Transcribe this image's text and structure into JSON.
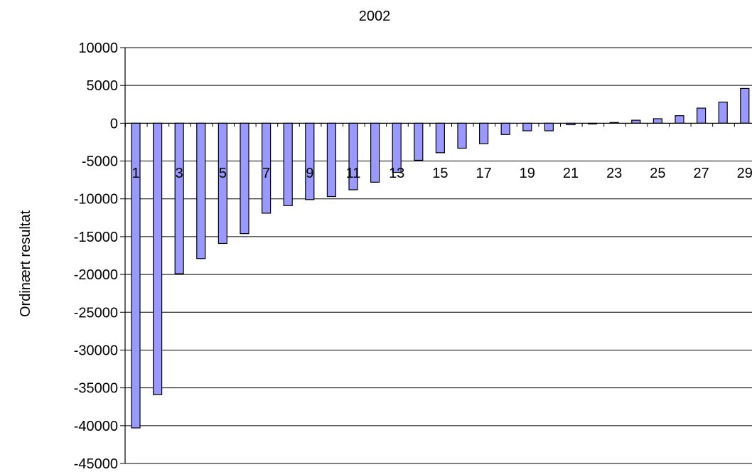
{
  "chart_data": {
    "type": "bar",
    "title": "2002",
    "xlabel": "",
    "ylabel": "Ordinært resultat",
    "ylim": [
      -45000,
      10000
    ],
    "y_ticks": [
      10000,
      5000,
      0,
      -5000,
      -10000,
      -15000,
      -20000,
      -25000,
      -30000,
      -35000,
      -40000,
      -45000
    ],
    "x_tick_labels": [
      "1",
      "3",
      "5",
      "7",
      "9",
      "11",
      "13",
      "15",
      "17",
      "19",
      "21",
      "23",
      "25",
      "27",
      "29"
    ],
    "grid": "horizontal",
    "categories": [
      "1",
      "2",
      "3",
      "4",
      "5",
      "6",
      "7",
      "8",
      "9",
      "10",
      "11",
      "12",
      "13",
      "14",
      "15",
      "16",
      "17",
      "18",
      "19",
      "20",
      "21",
      "22",
      "23",
      "24",
      "25",
      "26",
      "27",
      "28",
      "29"
    ],
    "values": [
      -40300,
      -35900,
      -19900,
      -17900,
      -15900,
      -14600,
      -11900,
      -10900,
      -10100,
      -9700,
      -8800,
      -7800,
      -6500,
      -4900,
      -3900,
      -3300,
      -2700,
      -1500,
      -1000,
      -1000,
      -200,
      -100,
      100,
      400,
      600,
      1000,
      2000,
      2800,
      4600
    ],
    "colors": {
      "bar_fill": "#9999ff",
      "bar_stroke": "#000000",
      "grid": "#000000",
      "text": "#000000"
    }
  }
}
